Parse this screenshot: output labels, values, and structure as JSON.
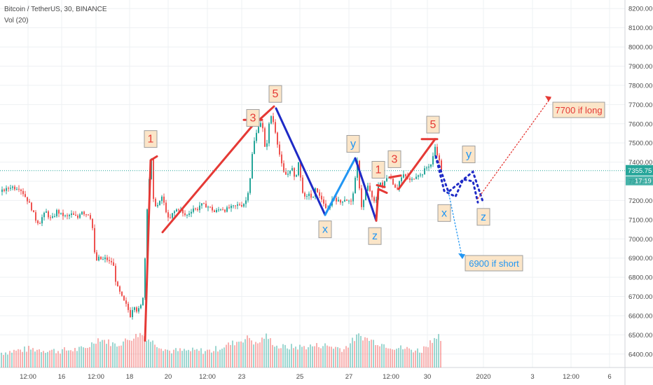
{
  "header": {
    "symbol_line": "Bitcoin / TetherUS, 30, BINANCE",
    "volume_indicator": "Vol (20)"
  },
  "price_tag": {
    "price": "7355.75",
    "countdown": "17:19",
    "color": "#26a69a"
  },
  "colors": {
    "up": "#26a69a",
    "down": "#ef5350",
    "impulse": "#e53935",
    "corrective_dark": "#1e2ac6",
    "corrective_light": "#2196f3",
    "grid": "#eef0f3",
    "label_bg": "#fbe5c8"
  },
  "chart_data": {
    "type": "candlestick",
    "title": "Bitcoin / TetherUS, 30, BINANCE",
    "ylim": [
      6330,
      8230
    ],
    "yticks": [
      "8200.00",
      "8100.00",
      "8000.00",
      "7900.00",
      "7800.00",
      "7700.00",
      "7600.00",
      "7500.00",
      "7400.00",
      "7300.00",
      "7200.00",
      "7100.00",
      "7000.00",
      "6900.00",
      "6800.00",
      "6700.00",
      "6600.00",
      "6500.00",
      "6400.00"
    ],
    "y_tick_values": [
      8200,
      8100,
      8000,
      7900,
      7800,
      7700,
      7600,
      7500,
      7400,
      7300,
      7200,
      7100,
      7000,
      6900,
      6800,
      6700,
      6600,
      6500,
      6400
    ],
    "xticks": [
      "12:00",
      "16",
      "12:00",
      "18",
      "20",
      "12:00",
      "23",
      "25",
      "27",
      "12:00",
      "30",
      "2020",
      "3",
      "12:00",
      "6"
    ],
    "x_tick_index": [
      40,
      88,
      137,
      185,
      240,
      296,
      345,
      428,
      498,
      558,
      610,
      690,
      760,
      815,
      870
    ],
    "last_price": 7355.75,
    "price_path": [
      [
        0,
        7245
      ],
      [
        5,
        7255
      ],
      [
        10,
        7260
      ],
      [
        15,
        7275
      ],
      [
        20,
        7265
      ],
      [
        25,
        7270
      ],
      [
        30,
        7250
      ],
      [
        35,
        7220
      ],
      [
        40,
        7190
      ],
      [
        45,
        7150
      ],
      [
        50,
        7100
      ],
      [
        55,
        7080
      ],
      [
        60,
        7120
      ],
      [
        65,
        7140
      ],
      [
        70,
        7105
      ],
      [
        75,
        7110
      ],
      [
        80,
        7145
      ],
      [
        85,
        7130
      ],
      [
        90,
        7120
      ],
      [
        95,
        7115
      ],
      [
        100,
        7130
      ],
      [
        105,
        7120
      ],
      [
        110,
        7110
      ],
      [
        115,
        7150
      ],
      [
        120,
        7130
      ],
      [
        125,
        7130
      ],
      [
        130,
        7100
      ],
      [
        135,
        6880
      ],
      [
        140,
        6900
      ],
      [
        145,
        6890
      ],
      [
        150,
        6900
      ],
      [
        155,
        6880
      ],
      [
        160,
        6880
      ],
      [
        165,
        6760
      ],
      [
        170,
        6720
      ],
      [
        175,
        6680
      ],
      [
        180,
        6650
      ],
      [
        185,
        6600
      ],
      [
        190,
        6660
      ],
      [
        195,
        6620
      ],
      [
        200,
        6650
      ],
      [
        203,
        6700
      ],
      [
        206,
        6900
      ],
      [
        210,
        7250
      ],
      [
        215,
        7410
      ],
      [
        218,
        7200
      ],
      [
        222,
        7170
      ],
      [
        226,
        7180
      ],
      [
        230,
        7220
      ],
      [
        235,
        7160
      ],
      [
        240,
        7090
      ],
      [
        245,
        7130
      ],
      [
        250,
        7150
      ],
      [
        255,
        7160
      ],
      [
        260,
        7130
      ],
      [
        265,
        7120
      ],
      [
        270,
        7140
      ],
      [
        275,
        7160
      ],
      [
        280,
        7150
      ],
      [
        285,
        7180
      ],
      [
        290,
        7175
      ],
      [
        295,
        7170
      ],
      [
        300,
        7160
      ],
      [
        305,
        7140
      ],
      [
        310,
        7150
      ],
      [
        315,
        7160
      ],
      [
        320,
        7150
      ],
      [
        325,
        7160
      ],
      [
        330,
        7165
      ],
      [
        335,
        7170
      ],
      [
        340,
        7180
      ],
      [
        345,
        7175
      ],
      [
        350,
        7200
      ],
      [
        355,
        7280
      ],
      [
        360,
        7480
      ],
      [
        365,
        7550
      ],
      [
        370,
        7620
      ],
      [
        375,
        7560
      ],
      [
        378,
        7430
      ],
      [
        382,
        7580
      ],
      [
        386,
        7640
      ],
      [
        390,
        7600
      ],
      [
        395,
        7500
      ],
      [
        400,
        7400
      ],
      [
        405,
        7330
      ],
      [
        410,
        7340
      ],
      [
        415,
        7380
      ],
      [
        420,
        7300
      ],
      [
        425,
        7400
      ],
      [
        430,
        7260
      ],
      [
        435,
        7200
      ],
      [
        440,
        7240
      ],
      [
        445,
        7200
      ],
      [
        450,
        7270
      ],
      [
        455,
        7220
      ],
      [
        460,
        7200
      ],
      [
        465,
        7140
      ],
      [
        470,
        7180
      ],
      [
        475,
        7220
      ],
      [
        480,
        7200
      ],
      [
        485,
        7190
      ],
      [
        490,
        7210
      ],
      [
        495,
        7200
      ],
      [
        500,
        7190
      ],
      [
        505,
        7280
      ],
      [
        510,
        7430
      ],
      [
        513,
        7190
      ],
      [
        516,
        7160
      ],
      [
        520,
        7240
      ],
      [
        525,
        7280
      ],
      [
        530,
        7210
      ],
      [
        535,
        7180
      ],
      [
        540,
        7310
      ],
      [
        545,
        7270
      ],
      [
        550,
        7320
      ],
      [
        555,
        7330
      ],
      [
        560,
        7290
      ],
      [
        565,
        7260
      ],
      [
        570,
        7310
      ],
      [
        575,
        7330
      ],
      [
        580,
        7320
      ],
      [
        585,
        7300
      ],
      [
        590,
        7320
      ],
      [
        595,
        7340
      ],
      [
        600,
        7330
      ],
      [
        605,
        7360
      ],
      [
        610,
        7380
      ],
      [
        615,
        7390
      ],
      [
        620,
        7480
      ],
      [
        625,
        7420
      ],
      [
        628,
        7370
      ],
      [
        630,
        7356
      ]
    ],
    "volume_path": [
      [
        0,
        6400
      ],
      [
        40,
        6420
      ],
      [
        80,
        6410
      ],
      [
        120,
        6420
      ],
      [
        140,
        6475
      ],
      [
        165,
        6440
      ],
      [
        200,
        6500
      ],
      [
        215,
        6460
      ],
      [
        240,
        6410
      ],
      [
        300,
        6410
      ],
      [
        355,
        6480
      ],
      [
        365,
        6440
      ],
      [
        378,
        6490
      ],
      [
        395,
        6430
      ],
      [
        430,
        6430
      ],
      [
        460,
        6440
      ],
      [
        490,
        6420
      ],
      [
        510,
        6490
      ],
      [
        540,
        6450
      ],
      [
        560,
        6430
      ],
      [
        600,
        6410
      ],
      [
        625,
        6500
      ],
      [
        630,
        6420
      ]
    ],
    "annotations": [
      {
        "label": "1",
        "x_index": 215,
        "price": 7440,
        "color": "impulse",
        "placement": "above"
      },
      {
        "label": "3",
        "x_index": 361,
        "price": 7550,
        "color": "impulse",
        "placement": "above"
      },
      {
        "label": "5",
        "x_index": 393,
        "price": 7675,
        "color": "impulse",
        "placement": "above"
      },
      {
        "label": "x",
        "x_index": 464,
        "price": 7130,
        "color": "corrective_light",
        "placement": "below"
      },
      {
        "label": "y",
        "x_index": 504,
        "price": 7415,
        "color": "corrective_light",
        "placement": "above"
      },
      {
        "label": "z",
        "x_index": 535,
        "price": 7095,
        "color": "corrective_light",
        "placement": "below"
      },
      {
        "label": "1",
        "x_index": 540,
        "price": 7280,
        "color": "impulse",
        "placement": "above"
      },
      {
        "label": "3",
        "x_index": 563,
        "price": 7335,
        "color": "impulse",
        "placement": "above"
      },
      {
        "label": "5",
        "x_index": 618,
        "price": 7515,
        "color": "impulse",
        "placement": "above"
      },
      {
        "label": "x",
        "x_index": 634,
        "price": 7215,
        "color": "corrective_light",
        "placement": "below"
      },
      {
        "label": "y",
        "x_index": 669,
        "price": 7360,
        "color": "corrective_light",
        "placement": "above"
      },
      {
        "label": "z",
        "x_index": 690,
        "price": 7195,
        "color": "corrective_light",
        "placement": "below"
      }
    ],
    "targets": [
      {
        "label": "7700 if long",
        "price": 7700,
        "color": "impulse"
      },
      {
        "label": "6900 if short",
        "price": 6900,
        "color": "corrective_light"
      }
    ],
    "wave_lines": [
      {
        "color": "impulse",
        "points": [
          [
            207,
            6470
          ],
          [
            215,
            7410
          ],
          [
            224,
            7430
          ]
        ]
      },
      {
        "color": "impulse",
        "points": [
          [
            232,
            7035
          ],
          [
            365,
            7610
          ]
        ]
      },
      {
        "color": "impulse",
        "points": [
          [
            348,
            7620
          ],
          [
            374,
            7620
          ]
        ]
      },
      {
        "color": "impulse",
        "points": [
          [
            370,
            7620
          ],
          [
            391,
            7690
          ]
        ]
      },
      {
        "color": "corrective_dark",
        "points": [
          [
            394,
            7680
          ],
          [
            464,
            7125
          ]
        ]
      },
      {
        "color": "corrective_light",
        "points": [
          [
            464,
            7125
          ],
          [
            507,
            7420
          ]
        ]
      },
      {
        "color": "corrective_dark",
        "points": [
          [
            507,
            7420
          ],
          [
            537,
            7095
          ]
        ]
      },
      {
        "color": "impulse",
        "points": [
          [
            537,
            7095
          ],
          [
            540,
            7260
          ],
          [
            552,
            7240
          ]
        ]
      },
      {
        "color": "impulse",
        "points": [
          [
            538,
            7280
          ],
          [
            549,
            7270
          ]
        ]
      },
      {
        "color": "impulse",
        "points": [
          [
            556,
            7320
          ],
          [
            572,
            7330
          ]
        ]
      },
      {
        "color": "impulse",
        "points": [
          [
            569,
            7260
          ],
          [
            621,
            7520
          ]
        ]
      },
      {
        "color": "impulse",
        "points": [
          [
            602,
            7520
          ],
          [
            624,
            7520
          ]
        ]
      }
    ],
    "dotted_paths": [
      {
        "color": "corrective_dark",
        "points": [
          [
            622,
            7430
          ],
          [
            640,
            7245
          ],
          [
            675,
            7350
          ],
          [
            690,
            7185
          ]
        ]
      },
      {
        "color": "corrective_dark",
        "points": [
          [
            622,
            7430
          ],
          [
            634,
            7250
          ],
          [
            650,
            7220
          ],
          [
            661,
            7310
          ],
          [
            675,
            7300
          ],
          [
            682,
            7190
          ]
        ]
      },
      {
        "color": "impulse",
        "points": [
          [
            682,
            7210
          ],
          [
            787,
            7740
          ]
        ]
      },
      {
        "color": "corrective_light",
        "points": [
          [
            640,
            7245
          ],
          [
            660,
            6895
          ]
        ]
      }
    ]
  }
}
